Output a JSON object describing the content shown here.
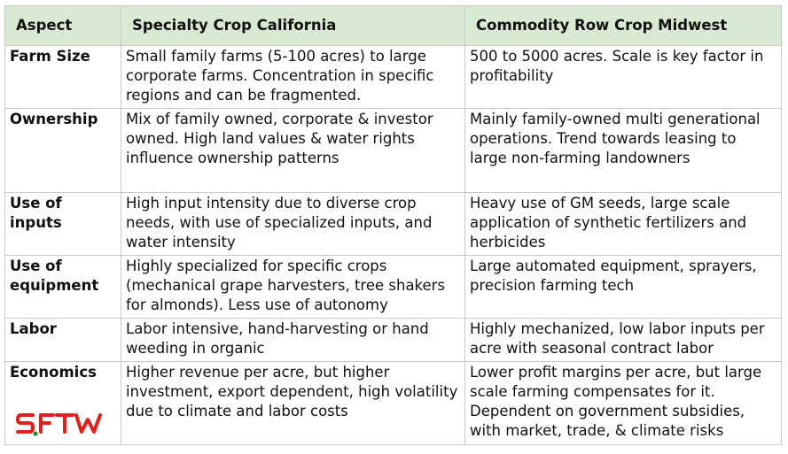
{
  "table": {
    "headers": [
      "Aspect",
      "Specialty Crop California",
      "Commodity Row Crop Midwest"
    ],
    "rows": [
      {
        "aspect": "Farm Size",
        "california": "Small family farms (5-100 acres) to large corporate farms. Concentration in specific regions and can be fragmented.",
        "midwest": "500 to 5000 acres. Scale is key factor in profitability"
      },
      {
        "aspect": "Ownership",
        "california": "Mix of family owned, corporate & investor owned. High land values & water rights influence ownership patterns",
        "midwest": "Mainly family-owned multi generational operations. Trend towards leasing to large non-farming landowners"
      },
      {
        "aspect": "Use of inputs",
        "california": "High input intensity due to diverse crop needs, with use of specialized inputs, and water intensity",
        "midwest": "Heavy use of GM seeds, large scale application of synthetic fertilizers and herbicides"
      },
      {
        "aspect": "Use of equipment",
        "california": "Highly specialized for specific crops (mechanical grape harvesters, tree shakers for almonds). Less use of autonomy",
        "midwest": "Large automated equipment, sprayers, precision farming tech"
      },
      {
        "aspect": "Labor",
        "california": "Labor intensive, hand-harvesting or hand weeding in organic",
        "midwest": "Highly mechanized, low labor inputs per acre with seasonal contract labor"
      },
      {
        "aspect": "Economics",
        "california": "Higher revenue per acre, but higher investment, export dependent, high volatility due to climate and labor costs",
        "midwest": "Lower profit margins per acre, but large scale farming compensates for it. Dependent on government subsidies, with market, trade, & climate risks"
      }
    ]
  },
  "logo": {
    "text": "SFTW",
    "color": "#e02020"
  }
}
